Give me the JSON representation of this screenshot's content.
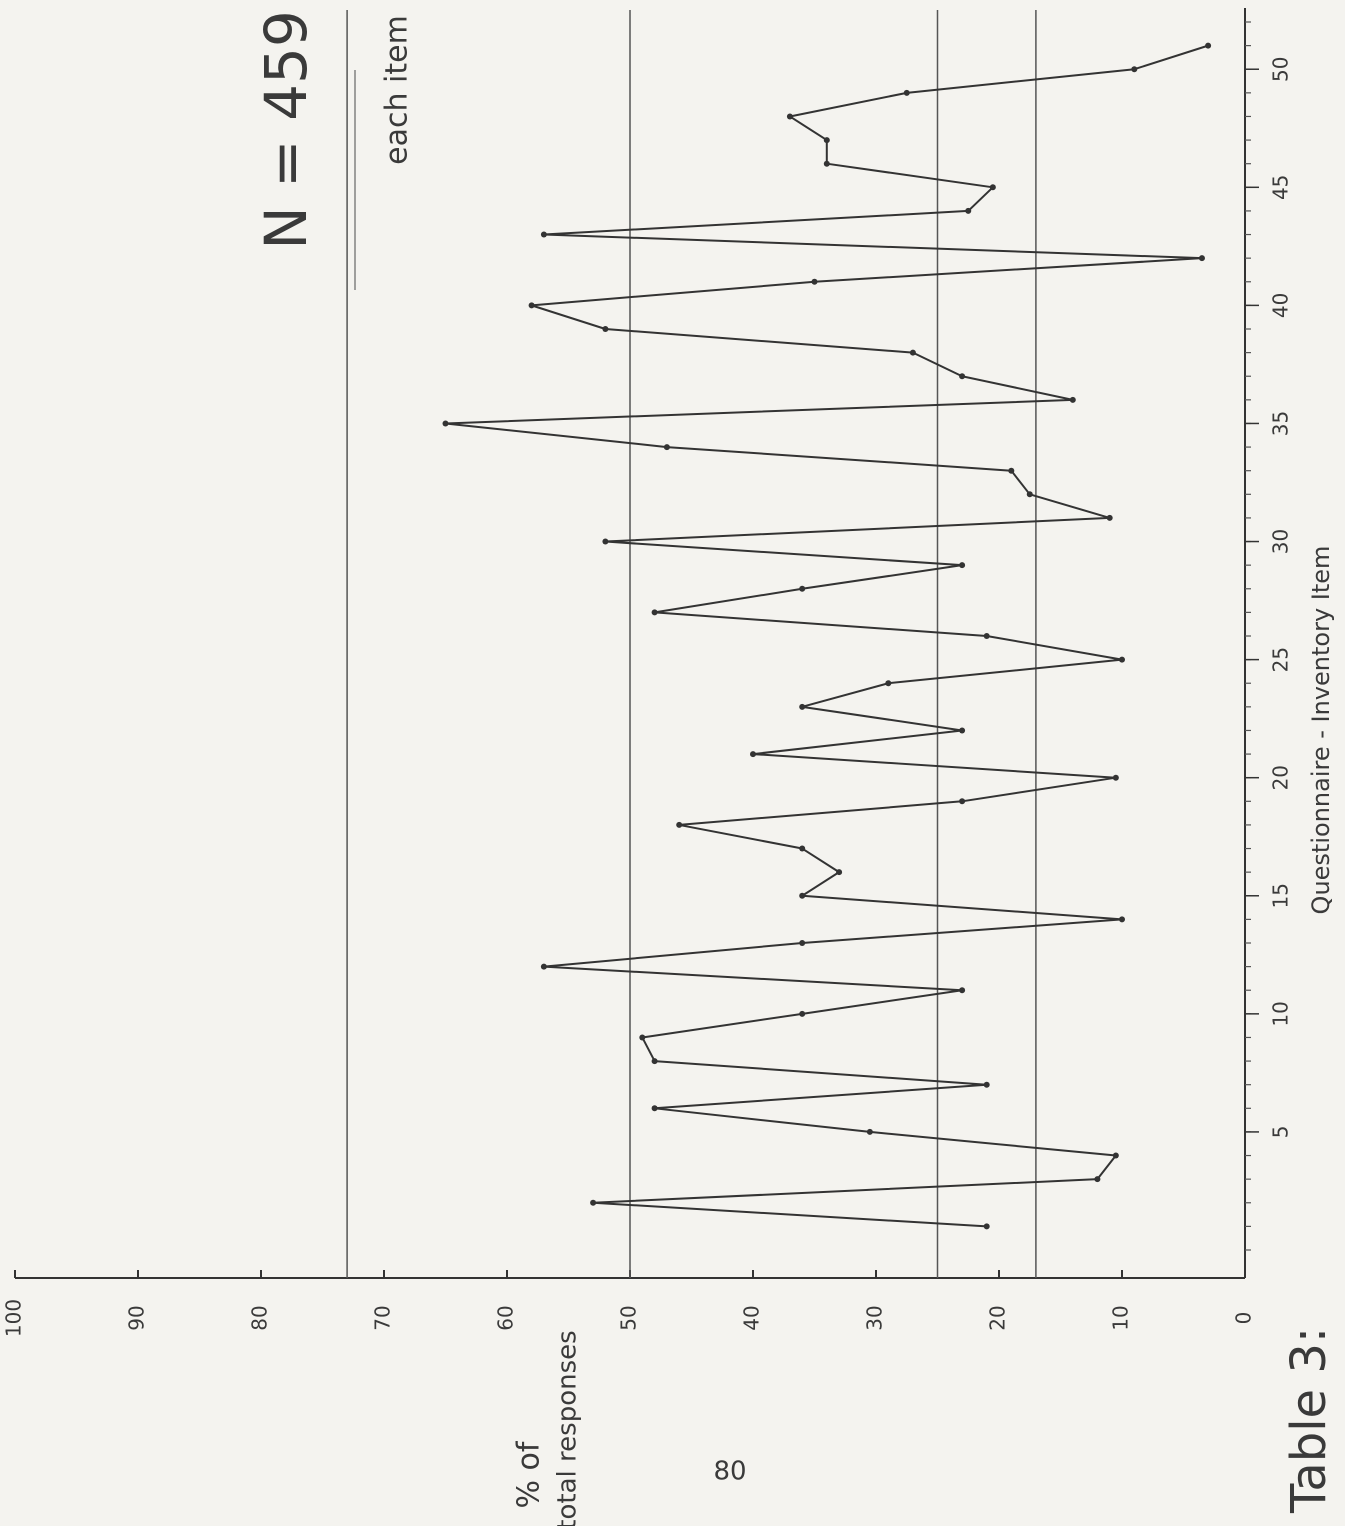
{
  "chart_data": {
    "type": "line",
    "title": "N = 459",
    "annotations": [
      "each item"
    ],
    "x_label": "Questionnaire - Inventory Item",
    "y_label_lines": [
      "% of",
      "total responses"
    ],
    "x": [
      1,
      2,
      3,
      4,
      5,
      6,
      7,
      8,
      9,
      10,
      11,
      12,
      13,
      14,
      15,
      16,
      17,
      18,
      19,
      20,
      21,
      22,
      23,
      24,
      25,
      26,
      27,
      28,
      29,
      30,
      31,
      32,
      33,
      34,
      35,
      36,
      37,
      38,
      39,
      40,
      41,
      42,
      43,
      44,
      45,
      46,
      47,
      48,
      49,
      50,
      51
    ],
    "series": [
      {
        "color": "#333333",
        "values": [
          21,
          53,
          12,
          10.5,
          30.5,
          48,
          21,
          48,
          49,
          36,
          23,
          57,
          36,
          10,
          36,
          33,
          36,
          46,
          23,
          10.5,
          40,
          23,
          36,
          29,
          10,
          21,
          48,
          36,
          23,
          52,
          11,
          17.5,
          19,
          47,
          65,
          14,
          23,
          27,
          52,
          58,
          35,
          3.5,
          57,
          22.5,
          20.5,
          34,
          34,
          37,
          27.5,
          9,
          3
        ]
      }
    ],
    "xlim": [
      0,
      52
    ],
    "xticks": [
      5,
      10,
      15,
      20,
      25,
      30,
      35,
      40,
      45,
      50
    ],
    "ylim": [
      0,
      100
    ],
    "yticks": [
      0,
      10,
      20,
      30,
      40,
      50,
      60,
      70,
      80,
      90,
      100
    ],
    "reference_lines": [
      73,
      50,
      25,
      17
    ]
  },
  "caption": "Table 3:",
  "page_number": "80"
}
